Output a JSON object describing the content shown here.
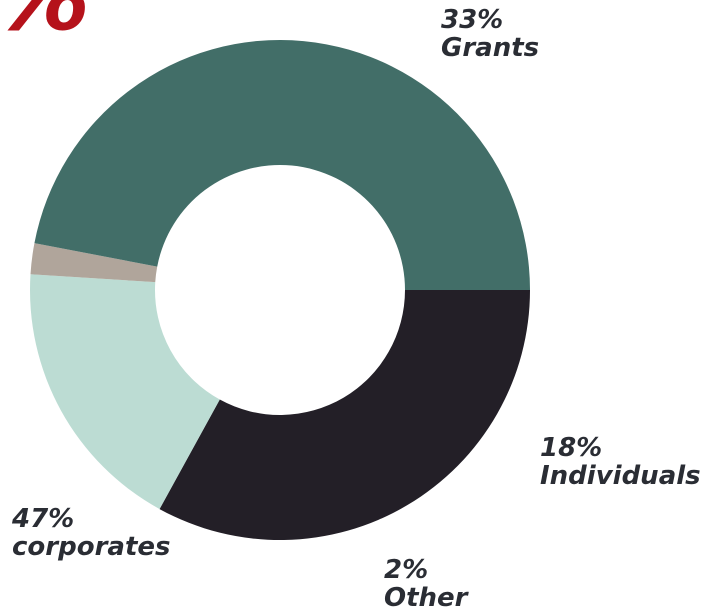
{
  "headline_fragment": "%",
  "colors": {
    "accent": "#b5121b",
    "label_text": "#2a2d34"
  },
  "chart_data": {
    "type": "pie",
    "donut": true,
    "start_angle_deg": 0,
    "direction": "clockwise",
    "categories": [
      "Grants",
      "Individuals",
      "Other",
      "corporates"
    ],
    "values": [
      33,
      18,
      2,
      47
    ],
    "value_labels": [
      "33%",
      "18%",
      "2%",
      "47%"
    ],
    "colors": [
      "#231f27",
      "#bcdcd3",
      "#b0a59b",
      "#426e68"
    ],
    "title": "",
    "legend": "none"
  }
}
